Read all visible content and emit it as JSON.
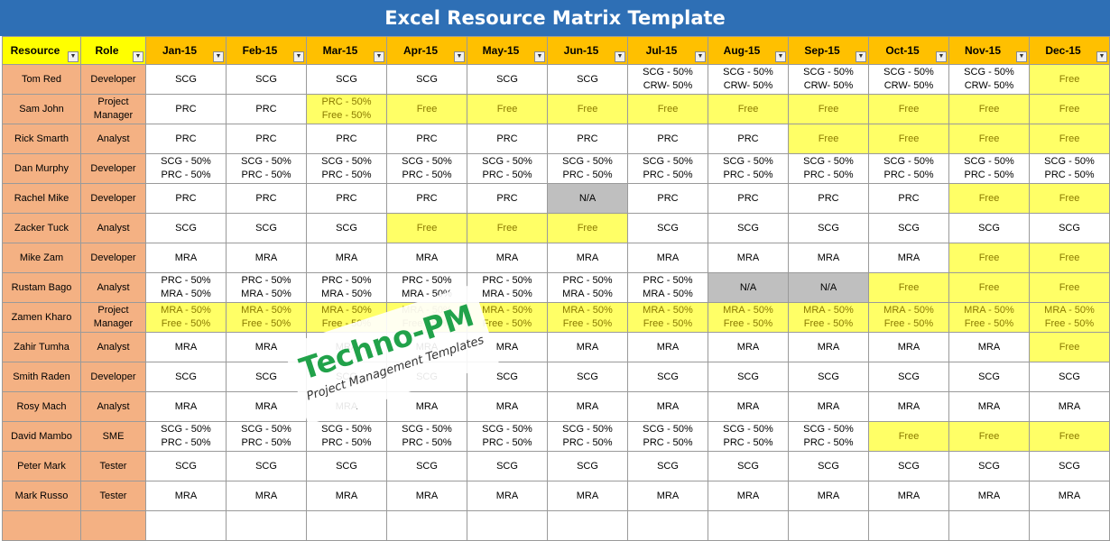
{
  "title": "Excel Resource Matrix Template",
  "headers": {
    "resource": "Resource",
    "role": "Role",
    "months": [
      "Jan-15",
      "Feb-15",
      "Mar-15",
      "Apr-15",
      "May-15",
      "Jun-15",
      "Jul-15",
      "Aug-15",
      "Sep-15",
      "Oct-15",
      "Nov-15",
      "Dec-15"
    ]
  },
  "dropdown_glyph": "▼",
  "rows": [
    {
      "name": "Tom Red",
      "role": "Developer",
      "cells": [
        "SCG",
        "SCG",
        "SCG",
        "SCG",
        "SCG",
        "SCG",
        "SCG - 50%\nCRW- 50%",
        "SCG - 50%\nCRW- 50%",
        "SCG - 50%\nCRW- 50%",
        "SCG - 50%\nCRW- 50%",
        "SCG - 50%\nCRW- 50%",
        "Free"
      ]
    },
    {
      "name": "Sam John",
      "role": "Project\nManager",
      "cells": [
        "PRC",
        "PRC",
        "PRC - 50%\nFree - 50%",
        "Free",
        "Free",
        "Free",
        "Free",
        "Free",
        "Free",
        "Free",
        "Free",
        "Free"
      ]
    },
    {
      "name": "Rick Smarth",
      "role": "Analyst",
      "cells": [
        "PRC",
        "PRC",
        "PRC",
        "PRC",
        "PRC",
        "PRC",
        "PRC",
        "PRC",
        "Free",
        "Free",
        "Free",
        "Free"
      ]
    },
    {
      "name": "Dan Murphy",
      "role": "Developer",
      "cells": [
        "SCG - 50%\nPRC - 50%",
        "SCG - 50%\nPRC - 50%",
        "SCG - 50%\nPRC - 50%",
        "SCG - 50%\nPRC - 50%",
        "SCG - 50%\nPRC - 50%",
        "SCG - 50%\nPRC - 50%",
        "SCG - 50%\nPRC - 50%",
        "SCG - 50%\nPRC - 50%",
        "SCG - 50%\nPRC - 50%",
        "SCG - 50%\nPRC - 50%",
        "SCG - 50%\nPRC - 50%",
        "SCG - 50%\nPRC - 50%"
      ]
    },
    {
      "name": "Rachel Mike",
      "role": "Developer",
      "cells": [
        "PRC",
        "PRC",
        "PRC",
        "PRC",
        "PRC",
        "N/A",
        "PRC",
        "PRC",
        "PRC",
        "PRC",
        "Free",
        "Free"
      ]
    },
    {
      "name": "Zacker Tuck",
      "role": "Analyst",
      "cells": [
        "SCG",
        "SCG",
        "SCG",
        "Free",
        "Free",
        "Free",
        "SCG",
        "SCG",
        "SCG",
        "SCG",
        "SCG",
        "SCG"
      ]
    },
    {
      "name": "Mike Zam",
      "role": "Developer",
      "cells": [
        "MRA",
        "MRA",
        "MRA",
        "MRA",
        "MRA",
        "MRA",
        "MRA",
        "MRA",
        "MRA",
        "MRA",
        "Free",
        "Free"
      ]
    },
    {
      "name": "Rustam Bago",
      "role": "Analyst",
      "cells": [
        "PRC - 50%\nMRA - 50%",
        "PRC - 50%\nMRA - 50%",
        "PRC - 50%\nMRA - 50%",
        "PRC - 50%\nMRA - 50%",
        "PRC - 50%\nMRA - 50%",
        "PRC - 50%\nMRA - 50%",
        "PRC - 50%\nMRA - 50%",
        "N/A",
        "N/A",
        "Free",
        "Free",
        "Free"
      ]
    },
    {
      "name": "Zamen Kharo",
      "role": "Project\nManager",
      "cells": [
        "MRA - 50%\nFree - 50%",
        "MRA - 50%\nFree - 50%",
        "MRA - 50%\nFree - 50%",
        "MRA - 50%\nFree - 50%",
        "MRA - 50%\nFree - 50%",
        "MRA - 50%\nFree - 50%",
        "MRA - 50%\nFree - 50%",
        "MRA - 50%\nFree - 50%",
        "MRA - 50%\nFree - 50%",
        "MRA - 50%\nFree - 50%",
        "MRA - 50%\nFree - 50%",
        "MRA - 50%\nFree - 50%"
      ]
    },
    {
      "name": "Zahir Tumha",
      "role": "Analyst",
      "cells": [
        "MRA",
        "MRA",
        "MRA",
        "MRA",
        "MRA",
        "MRA",
        "MRA",
        "MRA",
        "MRA",
        "MRA",
        "MRA",
        "Free"
      ]
    },
    {
      "name": "Smith Raden",
      "role": "Developer",
      "cells": [
        "SCG",
        "SCG",
        "SCG",
        "SCG",
        "SCG",
        "SCG",
        "SCG",
        "SCG",
        "SCG",
        "SCG",
        "SCG",
        "SCG"
      ]
    },
    {
      "name": "Rosy Mach",
      "role": "Analyst",
      "cells": [
        "MRA",
        "MRA",
        "MRA",
        "MRA",
        "MRA",
        "MRA",
        "MRA",
        "MRA",
        "MRA",
        "MRA",
        "MRA",
        "MRA"
      ]
    },
    {
      "name": "David Mambo",
      "role": "SME",
      "cells": [
        "SCG - 50%\nPRC - 50%",
        "SCG - 50%\nPRC - 50%",
        "SCG - 50%\nPRC - 50%",
        "SCG - 50%\nPRC - 50%",
        "SCG - 50%\nPRC - 50%",
        "SCG - 50%\nPRC - 50%",
        "SCG - 50%\nPRC - 50%",
        "SCG - 50%\nPRC - 50%",
        "SCG - 50%\nPRC - 50%",
        "Free",
        "Free",
        "Free"
      ]
    },
    {
      "name": "Peter Mark",
      "role": "Tester",
      "cells": [
        "SCG",
        "SCG",
        "SCG",
        "SCG",
        "SCG",
        "SCG",
        "SCG",
        "SCG",
        "SCG",
        "SCG",
        "SCG",
        "SCG"
      ]
    },
    {
      "name": "Mark Russo",
      "role": "Tester",
      "cells": [
        "MRA",
        "MRA",
        "MRA",
        "MRA",
        "MRA",
        "MRA",
        "MRA",
        "MRA",
        "MRA",
        "MRA",
        "MRA",
        "MRA"
      ]
    }
  ],
  "colors": {
    "title_bg": "#2e6fb5",
    "header_yellow": "#ffff00",
    "header_orange": "#ffc000",
    "resource_fill": "#f4b183",
    "free_fill": "#ffff66",
    "na_fill": "#bfbfbf",
    "watermark_green": "#21a24a"
  },
  "watermark": {
    "title": "Techno-PM",
    "subtitle": "Project Management Templates"
  }
}
